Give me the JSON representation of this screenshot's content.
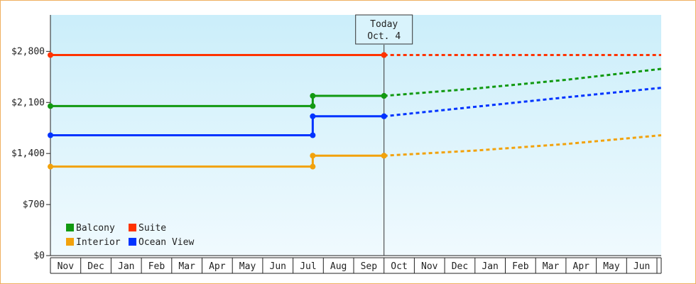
{
  "chart_data": {
    "type": "line",
    "title": "",
    "xlabel": "",
    "ylabel": "",
    "ylim": [
      0,
      3300
    ],
    "yticks": [
      0,
      700,
      1400,
      2100,
      2800
    ],
    "ytick_labels": [
      "$0",
      "$700",
      "$1,400",
      "$2,100",
      "$2,800"
    ],
    "categories": [
      "Nov",
      "Dec",
      "Jan",
      "Feb",
      "Mar",
      "Apr",
      "May",
      "Jun",
      "Jul",
      "Aug",
      "Sep",
      "Oct",
      "Nov",
      "Dec",
      "Jan",
      "Feb",
      "Mar",
      "Apr",
      "May",
      "Jun"
    ],
    "today": {
      "line1": "Today",
      "line2": "Oct. 4",
      "x": 11.0
    },
    "x_end": 21.0,
    "background_gradient": [
      "#cbeefa",
      "#f0fafe"
    ],
    "series": [
      {
        "name": "Suite",
        "color": "#ff3300",
        "history": [
          [
            0,
            2750
          ],
          [
            11.0,
            2750
          ]
        ],
        "forecast": [
          [
            11.0,
            2750
          ],
          [
            21.0,
            2750
          ]
        ]
      },
      {
        "name": "Balcony",
        "color": "#119911",
        "history": [
          [
            0,
            2050
          ],
          [
            8.65,
            2050
          ],
          [
            8.65,
            2190
          ],
          [
            11.0,
            2190
          ]
        ],
        "forecast": [
          [
            11.0,
            2190
          ],
          [
            14.0,
            2290
          ],
          [
            17.0,
            2410
          ],
          [
            21.0,
            2560
          ]
        ]
      },
      {
        "name": "Ocean View",
        "color": "#0033ff",
        "history": [
          [
            0,
            1650
          ],
          [
            8.65,
            1650
          ],
          [
            8.65,
            1910
          ],
          [
            11.0,
            1910
          ]
        ],
        "forecast": [
          [
            11.0,
            1910
          ],
          [
            14.0,
            2040
          ],
          [
            17.0,
            2170
          ],
          [
            21.0,
            2300
          ]
        ]
      },
      {
        "name": "Interior",
        "color": "#f2a20c",
        "history": [
          [
            0,
            1220
          ],
          [
            8.65,
            1220
          ],
          [
            8.65,
            1370
          ],
          [
            11.0,
            1370
          ]
        ],
        "forecast": [
          [
            11.0,
            1370
          ],
          [
            14.0,
            1440
          ],
          [
            17.0,
            1530
          ],
          [
            21.0,
            1650
          ]
        ]
      }
    ],
    "legend": {
      "placement": "bottom-left",
      "items": [
        {
          "label": "Balcony",
          "color": "#119911"
        },
        {
          "label": "Suite",
          "color": "#ff3300"
        },
        {
          "label": "Interior",
          "color": "#f2a20c"
        },
        {
          "label": "Ocean View",
          "color": "#0033ff"
        }
      ]
    }
  }
}
